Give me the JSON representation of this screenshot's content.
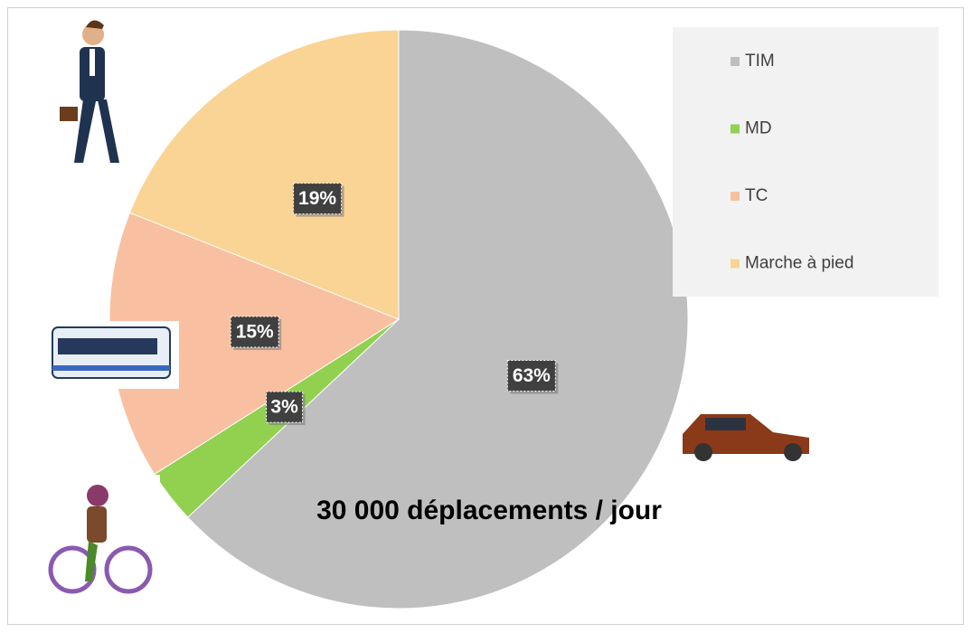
{
  "chart_data": {
    "type": "pie",
    "categories": [
      "TIM",
      "MD",
      "TC",
      "Marche à pied"
    ],
    "values": [
      63,
      3,
      15,
      19
    ],
    "value_labels": [
      "63%",
      "3%",
      "15%",
      "19%"
    ],
    "colors": [
      "#bfbfbf",
      "#92d050",
      "#f8c0a0",
      "#fad494"
    ],
    "annotation": "30 000 déplacements / jour",
    "legend": "right"
  }
}
